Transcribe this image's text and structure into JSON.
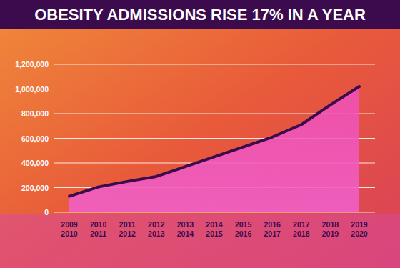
{
  "chart_data": {
    "type": "area",
    "title": "OBESITY ADMISSIONS RISE 17% IN A YEAR",
    "categories": [
      "2009\n2010",
      "2010\n2011",
      "2011\n2012",
      "2012\n2013",
      "2013\n2014",
      "2014\n2015",
      "2015\n2016",
      "2016\n2017",
      "2017\n2018",
      "2018\n2019",
      "2019\n2020"
    ],
    "values": [
      130000,
      205000,
      250000,
      290000,
      370000,
      450000,
      530000,
      610000,
      710000,
      870000,
      1020000
    ],
    "color": "#3b0b4e",
    "ylim": [
      0,
      1200000
    ],
    "yticks": [
      0,
      {
        "value": 200000,
        "label": "200,000"
      },
      {
        "value": 400000,
        "label": "400,000"
      },
      {
        "value": 600000,
        "label": "600,000"
      },
      {
        "value": 800000,
        "label": "800,000"
      },
      {
        "value": 1000000,
        "label": "1,000,000"
      },
      {
        "value": 1200000,
        "label": "1,200,000"
      }
    ],
    "grid": true
  }
}
